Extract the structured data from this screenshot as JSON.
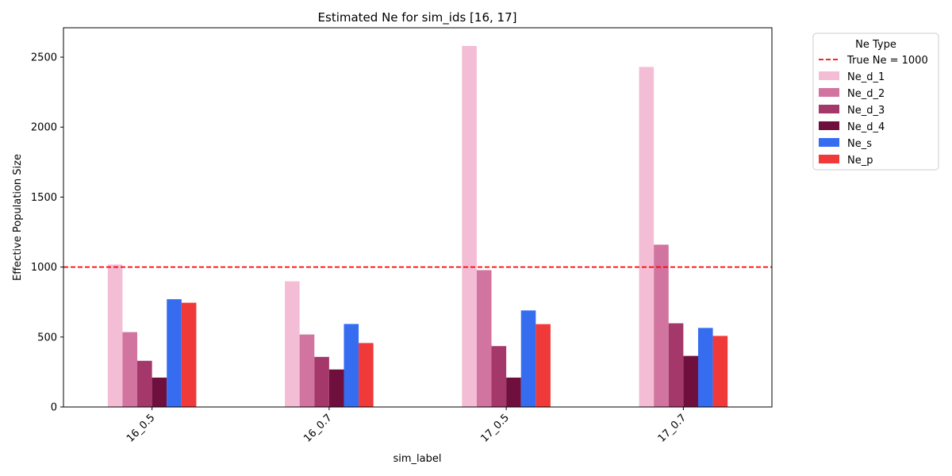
{
  "chart_data": {
    "type": "bar",
    "title": "Estimated Ne for sim_ids [16, 17]",
    "xlabel": "sim_label",
    "ylabel": "Effective Population Size",
    "categories": [
      "16_0.5",
      "16_0.7",
      "17_0.5",
      "17_0.7"
    ],
    "ylim": [
      0,
      2710
    ],
    "yticks": [
      0,
      500,
      1000,
      1500,
      2000,
      2500
    ],
    "grid": false,
    "legend": {
      "title": "Ne Type",
      "placement": "outside-right-top",
      "reference_label": "True Ne = 1000"
    },
    "reference_line": {
      "value": 1000,
      "color": "#ff0000",
      "style": "dashed"
    },
    "series": [
      {
        "name": "Ne_d_1",
        "color": "#f3bdd5",
        "values": [
          1018,
          898,
          2580,
          2430
        ]
      },
      {
        "name": "Ne_d_2",
        "color": "#d1749f",
        "values": [
          535,
          518,
          978,
          1160
        ]
      },
      {
        "name": "Ne_d_3",
        "color": "#a4386a",
        "values": [
          330,
          358,
          435,
          598
        ]
      },
      {
        "name": "Ne_d_4",
        "color": "#6e0f3e",
        "values": [
          210,
          268,
          210,
          365
        ]
      },
      {
        "name": "Ne_s",
        "color": "#356cf0",
        "values": [
          770,
          593,
          690,
          565
        ]
      },
      {
        "name": "Ne_p",
        "color": "#f03a3a",
        "values": [
          745,
          457,
          592,
          508
        ]
      }
    ]
  }
}
